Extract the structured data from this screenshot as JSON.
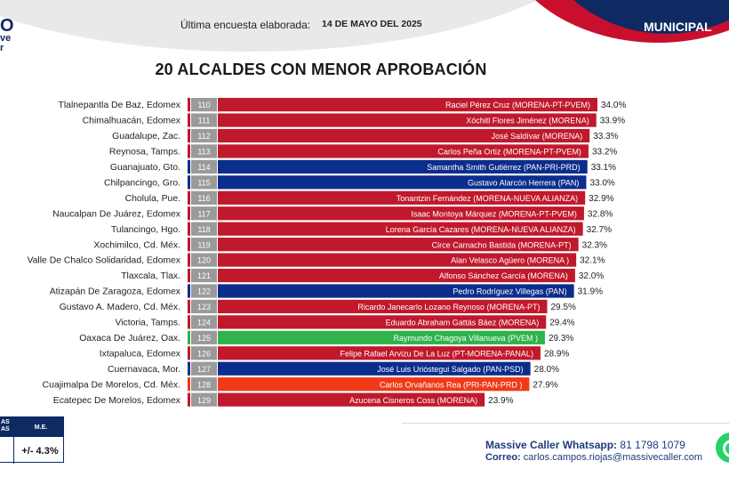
{
  "header": {
    "logo_char": "O",
    "logo_line2": "ve",
    "logo_line3": "r",
    "survey_label": "Última encuesta elaborada:",
    "survey_date": "14 DE MAYO DEL  2025",
    "scope": "MUNICIPAL"
  },
  "colors": {
    "brand_red": "#c8102e",
    "brand_navy": "#0e2a63",
    "morena": "#c0192c",
    "pan": "#0b2d8c",
    "pvem": "#2fb34a",
    "pri": "#f03a17"
  },
  "chart_data": {
    "type": "bar",
    "orientation": "horizontal",
    "title": "20 ALCALDES CON MENOR APROBACIÓN",
    "value_suffix": "%",
    "xlim": [
      0,
      34.0
    ],
    "grid": false,
    "legend": "none",
    "rows": [
      {
        "municipality": "Tlalnepantla De Baz, Edomex",
        "rank": "110",
        "mayor": "Raciel Pérez Cruz  (MORENA-PT-PVEM)",
        "value": 34.0,
        "label": "34.0%",
        "color": "#c0192c"
      },
      {
        "municipality": "Chimalhuacán, Edomex",
        "rank": "111",
        "mayor": "Xóchitl Flores Jiménez  (MORENA)",
        "value": 33.9,
        "label": "33.9%",
        "color": "#c0192c"
      },
      {
        "municipality": "Guadalupe, Zac.",
        "rank": "112",
        "mayor": "José Saldívar (MORENA)",
        "value": 33.3,
        "label": "33.3%",
        "color": "#c0192c"
      },
      {
        "municipality": "Reynosa, Tamps.",
        "rank": "113",
        "mayor": "Carlos Peña Ortiz (MORENA-PT-PVEM)",
        "value": 33.2,
        "label": "33.2%",
        "color": "#c0192c"
      },
      {
        "municipality": "Guanajuato, Gto.",
        "rank": "114",
        "mayor": "Samantha Smith Gutiérrez (PAN-PRI-PRD)",
        "value": 33.1,
        "label": "33.1%",
        "color": "#0b2d8c"
      },
      {
        "municipality": "Chilpancingo, Gro.",
        "rank": "115",
        "mayor": "Gustavo Alarcón Herrera (PAN)",
        "value": 33.0,
        "label": "33.0%",
        "color": "#0b2d8c"
      },
      {
        "municipality": "Cholula, Pue.",
        "rank": "116",
        "mayor": "Tonantzin Fernández (MORENA-NUEVA ALIANZA)",
        "value": 32.9,
        "label": "32.9%",
        "color": "#c0192c"
      },
      {
        "municipality": "Naucalpan De Juárez, Edomex",
        "rank": "117",
        "mayor": "Isaac Montoya Márquez (MORENA-PT-PVEM)",
        "value": 32.8,
        "label": "32.8%",
        "color": "#c0192c"
      },
      {
        "municipality": "Tulancingo, Hgo.",
        "rank": "118",
        "mayor": "Lorena García Cazares (MORENA-NUEVA ALIANZA)",
        "value": 32.7,
        "label": "32.7%",
        "color": "#c0192c"
      },
      {
        "municipality": "Xochimilco, Cd. Méx.",
        "rank": "119",
        "mayor": "Circe Camacho Bastida (MORENA-PT)",
        "value": 32.3,
        "label": "32.3%",
        "color": "#c0192c"
      },
      {
        "municipality": "Valle De Chalco Solidaridad, Edomex",
        "rank": "120",
        "mayor": "Alan Velasco Agüero (MORENA )",
        "value": 32.1,
        "label": "32.1%",
        "color": "#c0192c"
      },
      {
        "municipality": "Tlaxcala, Tlax.",
        "rank": "121",
        "mayor": "Alfonso Sánchez García  (MORENA)",
        "value": 32.0,
        "label": "32.0%",
        "color": "#c0192c"
      },
      {
        "municipality": "Atizapán De Zaragoza, Edomex",
        "rank": "122",
        "mayor": "Pedro Rodríguez Villegas (PAN)",
        "value": 31.9,
        "label": "31.9%",
        "color": "#0b2d8c"
      },
      {
        "municipality": "Gustavo A. Madero, Cd. Méx.",
        "rank": "123",
        "mayor": "Ricardo Janecarlo Lozano Reynoso (MORENA-PT)",
        "value": 29.5,
        "label": "29.5%",
        "color": "#c0192c"
      },
      {
        "municipality": "Victoria, Tamps.",
        "rank": "124",
        "mayor": "Eduardo Abraham Gattás Báez (MORENA)",
        "value": 29.4,
        "label": "29.4%",
        "color": "#c0192c"
      },
      {
        "municipality": "Oaxaca De Juárez, Oax.",
        "rank": "125",
        "mayor": "Raymundo Chagoya Villanueva (PVEM )",
        "value": 29.3,
        "label": "29.3%",
        "color": "#2fb34a"
      },
      {
        "municipality": "Ixtapaluca, Edomex",
        "rank": "126",
        "mayor": "Felipe Rafael Arvizu De La Luz (PT-MORENA-PANAL)",
        "value": 28.9,
        "label": "28.9%",
        "color": "#c0192c"
      },
      {
        "municipality": "Cuernavaca, Mor.",
        "rank": "127",
        "mayor": "José Luis Urióstegui Salgado (PAN-PSD)",
        "value": 28.0,
        "label": "28.0%",
        "color": "#0b2d8c"
      },
      {
        "municipality": "Cuajimalpa De Morelos, Cd. Méx.",
        "rank": "128",
        "mayor": "Carlos Orvañanos Rea (PRI-PAN-PRD )",
        "value": 27.9,
        "label": "27.9%",
        "color": "#f03a17"
      },
      {
        "municipality": "Ecatepec De Morelos, Edomex",
        "rank": "129",
        "mayor": "Azucena Cisneros Coss (MORENA)",
        "value": 23.9,
        "label": "23.9%",
        "color": "#c0192c"
      }
    ]
  },
  "margin_box": {
    "col_a_line1": "AS",
    "col_a_line2": "AS",
    "col_b_header": "M.E.",
    "value": "+/- 4.3%"
  },
  "contact": {
    "whatsapp_key": "Massive Caller Whatsapp:",
    "whatsapp_value": "81 1798 1079",
    "email_key": "Correo:",
    "email_value": "carlos.campos.riojas@massivecaller.com"
  }
}
